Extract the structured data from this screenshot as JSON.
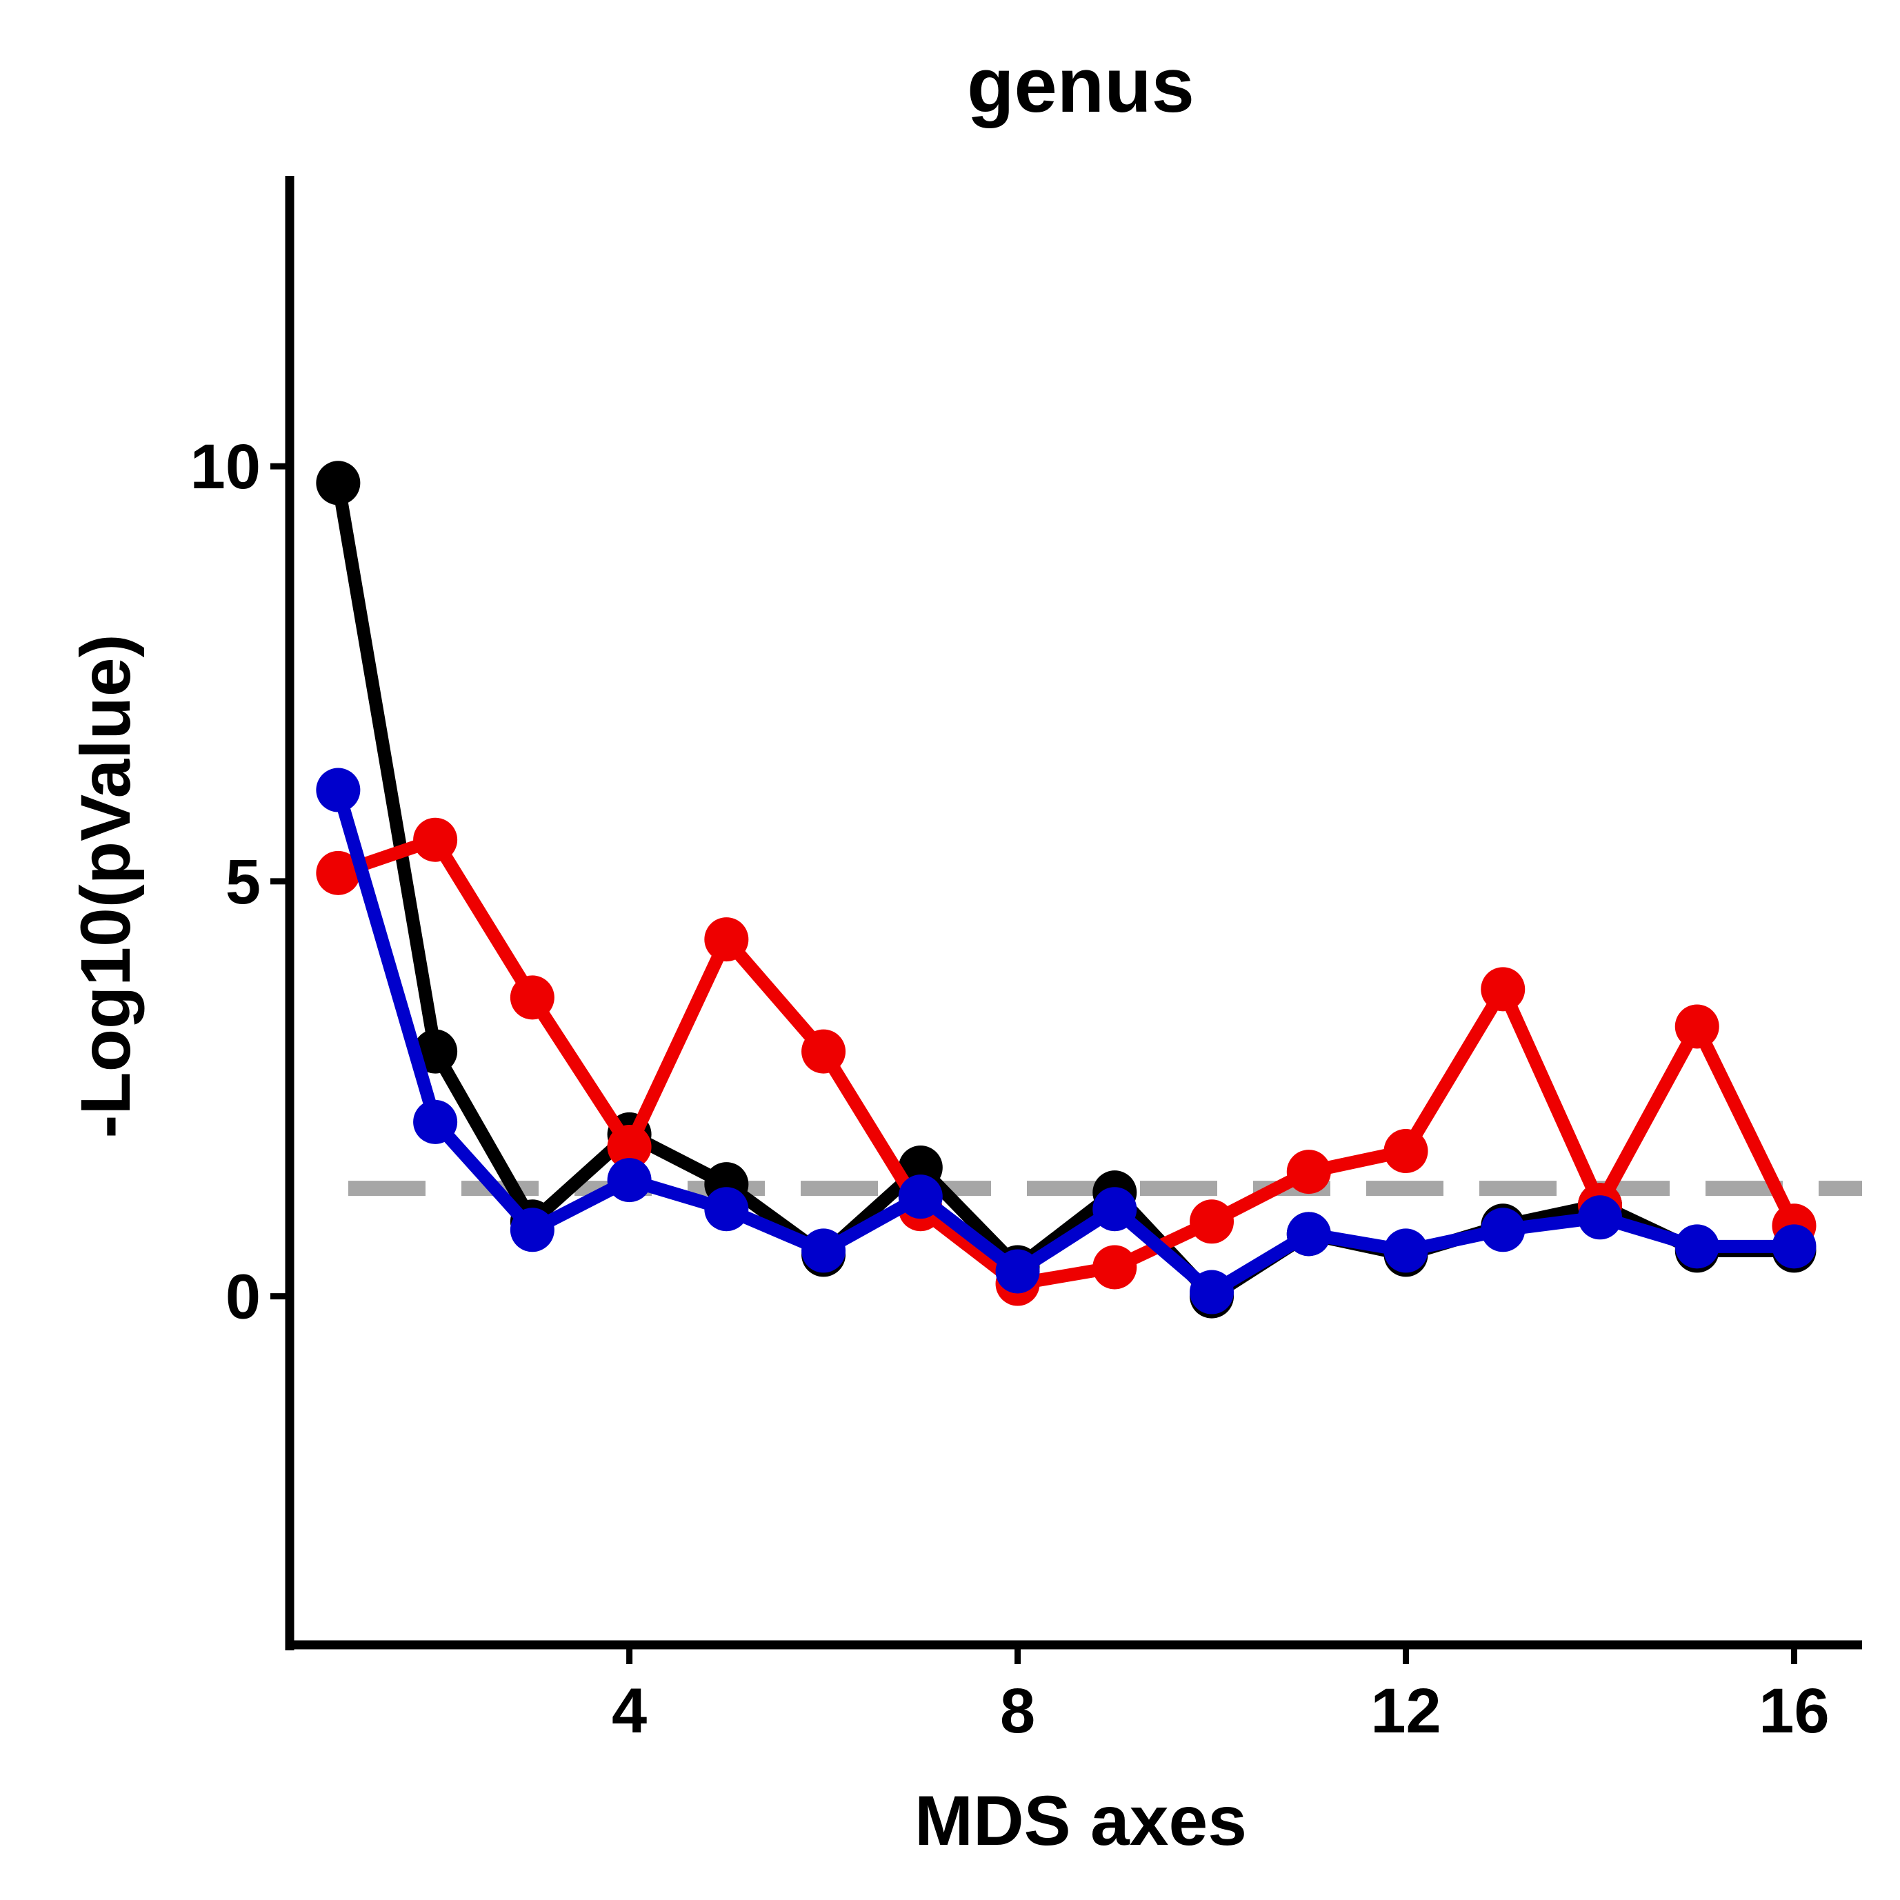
{
  "chart_data": {
    "type": "line",
    "title": "genus",
    "xlabel": "MDS axes",
    "ylabel": "-Log10(pValue)",
    "xlim": [
      0.5,
      16.7
    ],
    "ylim": [
      -4.2,
      13.5
    ],
    "x_ticks": [
      4,
      8,
      12,
      16
    ],
    "y_ticks": [
      0,
      5,
      10
    ],
    "grid": false,
    "legend": "none",
    "threshold": {
      "y": 1.3,
      "style": "dashed",
      "color": "#a6a6a6"
    },
    "x": [
      1,
      2,
      3,
      4,
      5,
      6,
      7,
      8,
      9,
      10,
      11,
      12,
      13,
      14,
      15,
      16
    ],
    "series": [
      {
        "color": "#000000",
        "values": [
          9.8,
          2.95,
          0.9,
          1.95,
          1.35,
          0.5,
          1.55,
          0.35,
          1.25,
          0.0,
          0.75,
          0.5,
          0.85,
          1.1,
          0.55,
          0.55
        ]
      },
      {
        "color": "#ee0000",
        "values": [
          5.1,
          5.5,
          3.6,
          1.8,
          4.3,
          2.95,
          1.05,
          0.15,
          0.35,
          0.9,
          1.5,
          1.75,
          3.7,
          1.1,
          3.25,
          0.85
        ]
      },
      {
        "color": "#0000cc",
        "values": [
          6.1,
          2.1,
          0.8,
          1.4,
          1.05,
          0.55,
          1.2,
          0.3,
          1.05,
          0.05,
          0.75,
          0.55,
          0.8,
          0.95,
          0.6,
          0.6
        ]
      }
    ]
  }
}
